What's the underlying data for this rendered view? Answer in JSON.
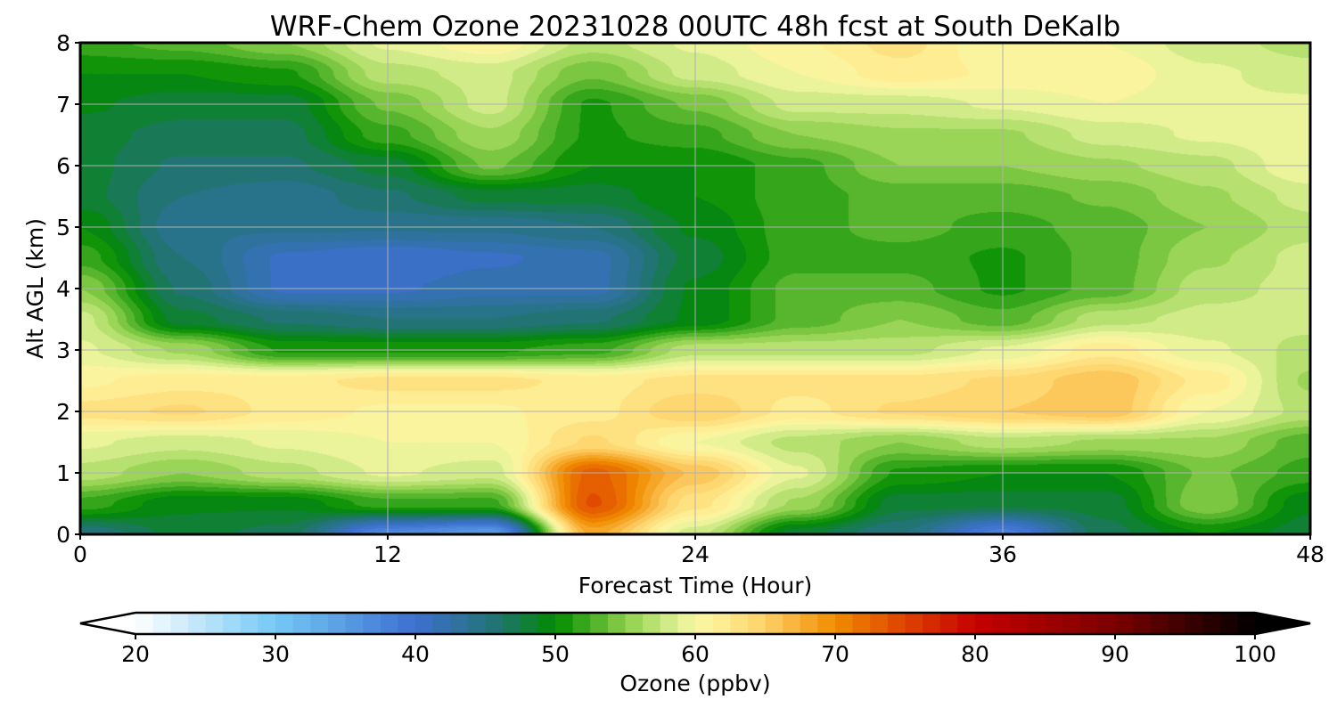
{
  "chart_data": {
    "type": "heatmap",
    "title": "WRF-Chem Ozone  20231028 00UTC 48h fcst at South DeKalb",
    "xlabel": "Forecast Time (Hour)",
    "ylabel": "Alt AGL (km)",
    "xlim": [
      0,
      48
    ],
    "ylim": [
      0,
      8
    ],
    "xticks": [
      0,
      12,
      24,
      36,
      48
    ],
    "yticks": [
      0,
      1,
      2,
      3,
      4,
      5,
      6,
      7,
      8
    ],
    "grid": true,
    "x": [
      0,
      4,
      8,
      12,
      16,
      20,
      24,
      28,
      32,
      36,
      40,
      44,
      48
    ],
    "y": [
      0,
      0.5,
      1,
      1.5,
      2,
      2.5,
      3,
      3.5,
      4,
      4.5,
      5,
      5.5,
      6,
      6.5,
      7,
      7.5,
      8
    ],
    "z": [
      [
        45,
        48,
        47,
        37,
        35,
        68,
        58,
        48,
        45,
        38,
        47,
        50,
        48
      ],
      [
        52,
        49,
        49,
        52,
        52,
        74,
        63,
        56,
        48,
        48,
        48,
        55,
        49
      ],
      [
        57,
        55,
        57,
        59,
        58,
        73,
        66,
        59,
        51,
        50,
        50,
        54,
        52
      ],
      [
        59,
        58,
        59,
        60,
        60,
        64,
        60,
        57,
        55,
        57,
        56,
        56,
        53
      ],
      [
        63,
        64,
        62,
        61,
        61,
        62,
        65,
        62,
        64,
        65,
        66,
        60,
        57
      ],
      [
        61,
        62,
        62,
        63,
        63,
        62,
        63,
        63,
        63,
        64,
        66,
        62,
        56
      ],
      [
        59,
        56,
        51,
        51,
        51,
        52,
        57,
        57,
        57,
        59,
        62,
        59,
        57
      ],
      [
        58,
        48,
        46,
        45,
        45,
        46,
        49,
        53,
        55,
        53,
        57,
        58,
        58
      ],
      [
        55,
        46,
        41,
        41,
        42,
        42,
        49,
        53,
        53,
        51,
        53,
        57,
        58
      ],
      [
        52,
        45,
        41,
        40,
        41,
        42,
        48,
        52,
        52,
        51,
        53,
        56,
        58
      ],
      [
        50,
        44,
        44,
        44,
        44,
        45,
        49,
        52,
        53,
        52,
        53,
        55,
        57
      ],
      [
        48,
        45,
        44,
        46,
        48,
        48,
        50,
        52,
        53,
        53,
        54,
        56,
        58
      ],
      [
        48,
        46,
        46,
        48,
        54,
        50,
        50,
        52,
        55,
        55,
        56,
        57,
        60
      ],
      [
        48,
        47,
        47,
        52,
        56,
        51,
        52,
        55,
        56,
        56,
        58,
        59,
        60
      ],
      [
        49,
        48,
        48,
        54,
        58,
        51,
        54,
        58,
        58,
        59,
        60,
        59,
        59
      ],
      [
        50,
        50,
        51,
        57,
        58,
        54,
        58,
        60,
        62,
        61,
        61,
        59,
        58
      ],
      [
        52,
        53,
        55,
        59,
        61,
        57,
        59,
        61,
        63,
        60,
        60,
        58,
        57
      ]
    ],
    "colorbar": {
      "label": "Ozone  (ppbv)",
      "ticks": [
        20,
        30,
        40,
        50,
        60,
        70,
        80,
        90,
        100
      ],
      "min": 20,
      "max": 100,
      "extend": "both",
      "colors": [
        {
          "v": 20,
          "c": "#ffffff"
        },
        {
          "v": 30,
          "c": "#74c9f5"
        },
        {
          "v": 40,
          "c": "#3d6fd0"
        },
        {
          "v": 46,
          "c": "#20746e"
        },
        {
          "v": 50,
          "c": "#008b00"
        },
        {
          "v": 55,
          "c": "#8cd04a"
        },
        {
          "v": 59,
          "c": "#e6f29a"
        },
        {
          "v": 61,
          "c": "#fff5a0"
        },
        {
          "v": 65,
          "c": "#fed168"
        },
        {
          "v": 70,
          "c": "#f08c00"
        },
        {
          "v": 75,
          "c": "#de4200"
        },
        {
          "v": 80,
          "c": "#c60000"
        },
        {
          "v": 90,
          "c": "#7a0000"
        },
        {
          "v": 100,
          "c": "#000000"
        }
      ]
    }
  }
}
